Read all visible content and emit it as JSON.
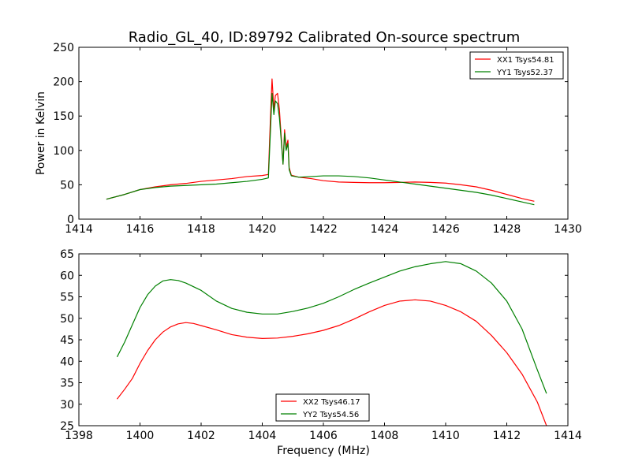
{
  "chart_data": [
    {
      "type": "line",
      "title": "Radio_GL_40, ID:89792 Calibrated On-source spectrum",
      "xlabel": "",
      "ylabel": "Power in Kelvin",
      "xlim": [
        1414,
        1430
      ],
      "ylim": [
        0,
        250
      ],
      "xticks": [
        1414,
        1416,
        1418,
        1420,
        1422,
        1424,
        1426,
        1428,
        1430
      ],
      "yticks": [
        0,
        50,
        100,
        150,
        200,
        250
      ],
      "grid": false,
      "legend_position": "top-right",
      "series": [
        {
          "name": "XX1 Tsys54.81",
          "color": "#ff0000",
          "points": [
            [
              1414.9,
              29
            ],
            [
              1415.5,
              36
            ],
            [
              1416,
              43
            ],
            [
              1416.5,
              47
            ],
            [
              1417,
              50
            ],
            [
              1417.5,
              52
            ],
            [
              1418,
              55
            ],
            [
              1418.5,
              57
            ],
            [
              1419,
              59
            ],
            [
              1419.5,
              62
            ],
            [
              1420,
              63.5
            ],
            [
              1420.2,
              65
            ],
            [
              1420.27,
              150
            ],
            [
              1420.32,
              204
            ],
            [
              1420.38,
              160
            ],
            [
              1420.43,
              180
            ],
            [
              1420.5,
              183
            ],
            [
              1420.56,
              160
            ],
            [
              1420.62,
              120
            ],
            [
              1420.68,
              80
            ],
            [
              1420.73,
              130
            ],
            [
              1420.78,
              105
            ],
            [
              1420.84,
              115
            ],
            [
              1420.88,
              75
            ],
            [
              1420.95,
              64
            ],
            [
              1421.2,
              61
            ],
            [
              1421.6,
              59
            ],
            [
              1422,
              56
            ],
            [
              1422.5,
              54
            ],
            [
              1423,
              53.5
            ],
            [
              1423.5,
              53
            ],
            [
              1424,
              53
            ],
            [
              1424.5,
              53.5
            ],
            [
              1425,
              54
            ],
            [
              1425.5,
              53.5
            ],
            [
              1426,
              52.5
            ],
            [
              1426.5,
              50
            ],
            [
              1427,
              47
            ],
            [
              1427.5,
              42
            ],
            [
              1428,
              36
            ],
            [
              1428.5,
              30
            ],
            [
              1428.9,
              26
            ]
          ]
        },
        {
          "name": "YY1 Tsys52.37",
          "color": "#008000",
          "points": [
            [
              1414.9,
              29
            ],
            [
              1415.5,
              36
            ],
            [
              1416,
              43
            ],
            [
              1416.5,
              46
            ],
            [
              1417,
              48
            ],
            [
              1417.5,
              49
            ],
            [
              1418,
              50
            ],
            [
              1418.5,
              51
            ],
            [
              1419,
              53
            ],
            [
              1419.5,
              55
            ],
            [
              1420,
              58
            ],
            [
              1420.2,
              60
            ],
            [
              1420.27,
              130
            ],
            [
              1420.32,
              183
            ],
            [
              1420.38,
              152
            ],
            [
              1420.43,
              172
            ],
            [
              1420.5,
              168
            ],
            [
              1420.56,
              148
            ],
            [
              1420.62,
              115
            ],
            [
              1420.68,
              80
            ],
            [
              1420.73,
              125
            ],
            [
              1420.78,
              100
            ],
            [
              1420.84,
              110
            ],
            [
              1420.88,
              72
            ],
            [
              1420.95,
              63
            ],
            [
              1421.2,
              61
            ],
            [
              1421.6,
              62
            ],
            [
              1422,
              63
            ],
            [
              1422.5,
              63
            ],
            [
              1423,
              62
            ],
            [
              1423.5,
              60
            ],
            [
              1424,
              57
            ],
            [
              1424.5,
              54
            ],
            [
              1425,
              51
            ],
            [
              1425.5,
              48
            ],
            [
              1426,
              45
            ],
            [
              1426.5,
              42
            ],
            [
              1427,
              39
            ],
            [
              1427.5,
              35
            ],
            [
              1428,
              30
            ],
            [
              1428.5,
              25
            ],
            [
              1428.9,
              21
            ]
          ]
        }
      ]
    },
    {
      "type": "line",
      "title": "",
      "xlabel": "Frequency (MHz)",
      "ylabel": "",
      "xlim": [
        1398,
        1414
      ],
      "ylim": [
        25,
        65
      ],
      "xticks": [
        1398,
        1400,
        1402,
        1404,
        1406,
        1408,
        1410,
        1412,
        1414
      ],
      "yticks": [
        25,
        30,
        35,
        40,
        45,
        50,
        55,
        60,
        65
      ],
      "grid": false,
      "legend_position": "bottom-center",
      "series": [
        {
          "name": "XX2 Tsys46.17",
          "color": "#ff0000",
          "points": [
            [
              1399.25,
              31.2
            ],
            [
              1399.5,
              33.5
            ],
            [
              1399.75,
              36
            ],
            [
              1400,
              39.5
            ],
            [
              1400.25,
              42.5
            ],
            [
              1400.5,
              45
            ],
            [
              1400.75,
              46.8
            ],
            [
              1401,
              48
            ],
            [
              1401.25,
              48.7
            ],
            [
              1401.5,
              49
            ],
            [
              1401.75,
              48.8
            ],
            [
              1402,
              48.3
            ],
            [
              1402.5,
              47.3
            ],
            [
              1403,
              46.2
            ],
            [
              1403.5,
              45.6
            ],
            [
              1404,
              45.3
            ],
            [
              1404.5,
              45.4
            ],
            [
              1405,
              45.8
            ],
            [
              1405.5,
              46.4
            ],
            [
              1406,
              47.2
            ],
            [
              1406.5,
              48.3
            ],
            [
              1407,
              49.8
            ],
            [
              1407.5,
              51.5
            ],
            [
              1408,
              53
            ],
            [
              1408.5,
              54
            ],
            [
              1409,
              54.3
            ],
            [
              1409.5,
              54
            ],
            [
              1410,
              53
            ],
            [
              1410.5,
              51.5
            ],
            [
              1411,
              49.3
            ],
            [
              1411.5,
              46
            ],
            [
              1412,
              42
            ],
            [
              1412.5,
              37
            ],
            [
              1413,
              30.5
            ],
            [
              1413.3,
              25
            ]
          ]
        },
        {
          "name": "YY2 Tsys54.56",
          "color": "#008000",
          "points": [
            [
              1399.25,
              41
            ],
            [
              1399.5,
              44.5
            ],
            [
              1399.75,
              48.5
            ],
            [
              1400,
              52.5
            ],
            [
              1400.25,
              55.5
            ],
            [
              1400.5,
              57.5
            ],
            [
              1400.75,
              58.7
            ],
            [
              1401,
              59
            ],
            [
              1401.25,
              58.8
            ],
            [
              1401.5,
              58.2
            ],
            [
              1402,
              56.5
            ],
            [
              1402.5,
              54
            ],
            [
              1403,
              52.3
            ],
            [
              1403.5,
              51.4
            ],
            [
              1404,
              51
            ],
            [
              1404.5,
              51
            ],
            [
              1405,
              51.6
            ],
            [
              1405.5,
              52.4
            ],
            [
              1406,
              53.5
            ],
            [
              1406.5,
              55
            ],
            [
              1407,
              56.7
            ],
            [
              1407.5,
              58.2
            ],
            [
              1408,
              59.6
            ],
            [
              1408.5,
              61
            ],
            [
              1409,
              62
            ],
            [
              1409.5,
              62.7
            ],
            [
              1410,
              63.2
            ],
            [
              1410.5,
              62.7
            ],
            [
              1411,
              61
            ],
            [
              1411.5,
              58.2
            ],
            [
              1412,
              54
            ],
            [
              1412.5,
              47.5
            ],
            [
              1413,
              38
            ],
            [
              1413.3,
              32.5
            ]
          ]
        }
      ]
    }
  ]
}
